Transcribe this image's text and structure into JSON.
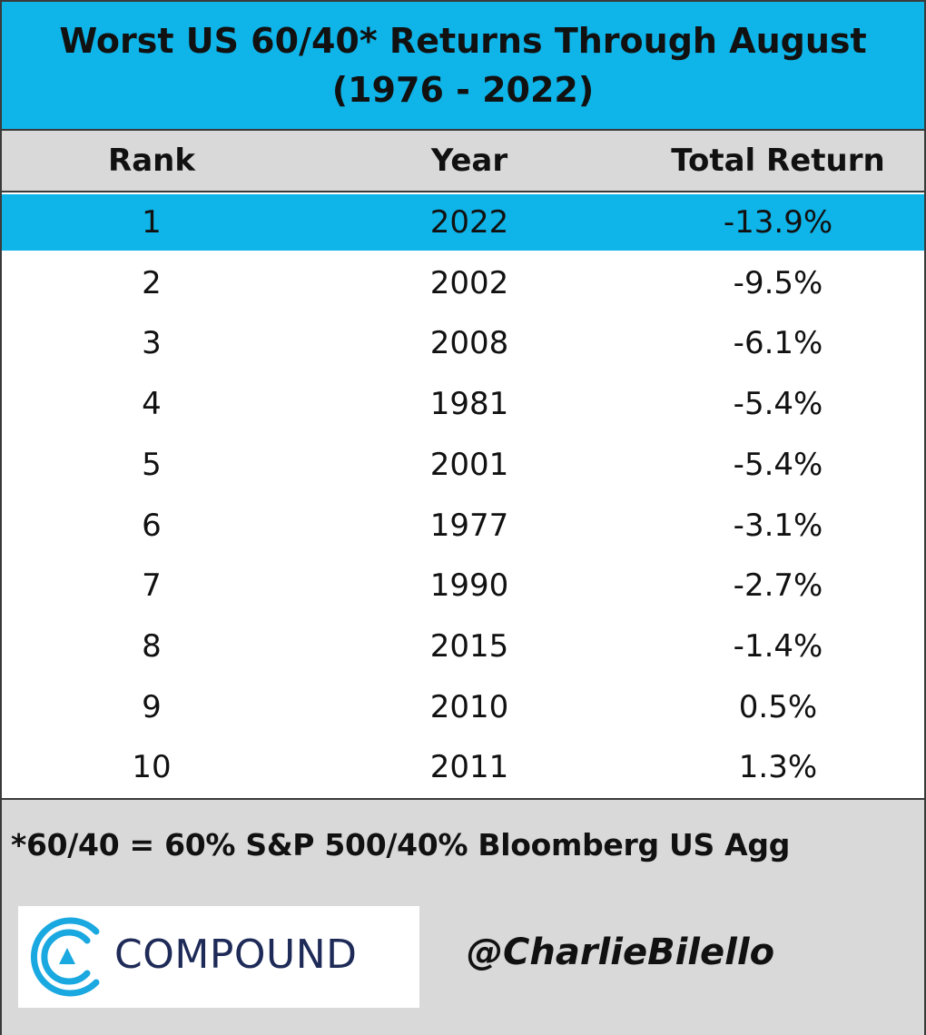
{
  "chart_data": {
    "type": "table",
    "title_line1": "Worst US 60/40* Returns Through August",
    "title_line2": "(1976 - 2022)",
    "columns": [
      "Rank",
      "Year",
      "Total Return"
    ],
    "rows": [
      {
        "rank": "1",
        "year": "2022",
        "total_return": "-13.9%",
        "highlight": true
      },
      {
        "rank": "2",
        "year": "2002",
        "total_return": "-9.5%"
      },
      {
        "rank": "3",
        "year": "2008",
        "total_return": "-6.1%"
      },
      {
        "rank": "4",
        "year": "1981",
        "total_return": "-5.4%"
      },
      {
        "rank": "5",
        "year": "2001",
        "total_return": "-5.4%"
      },
      {
        "rank": "6",
        "year": "1977",
        "total_return": "-3.1%"
      },
      {
        "rank": "7",
        "year": "1990",
        "total_return": "-2.7%"
      },
      {
        "rank": "8",
        "year": "2015",
        "total_return": "-1.4%"
      },
      {
        "rank": "9",
        "year": "2010",
        "total_return": "0.5%"
      },
      {
        "rank": "10",
        "year": "2011",
        "total_return": "1.3%"
      }
    ],
    "values": [
      -13.9,
      -9.5,
      -6.1,
      -5.4,
      -5.4,
      -3.1,
      -2.7,
      -1.4,
      0.5,
      1.3
    ]
  },
  "footnote": "*60/40 = 60% S&P 500/40% Bloomberg US Agg",
  "logo": {
    "text": "COMPOUND",
    "icon": "compound-logo-icon"
  },
  "handle": "@CharlieBilello",
  "colors": {
    "title_bg": "#0fb4e8",
    "header_bg": "#d9d9d9",
    "highlight": "#0fb4e8",
    "footer_bg": "#d9d9d9",
    "logo_text": "#1e2a57"
  }
}
